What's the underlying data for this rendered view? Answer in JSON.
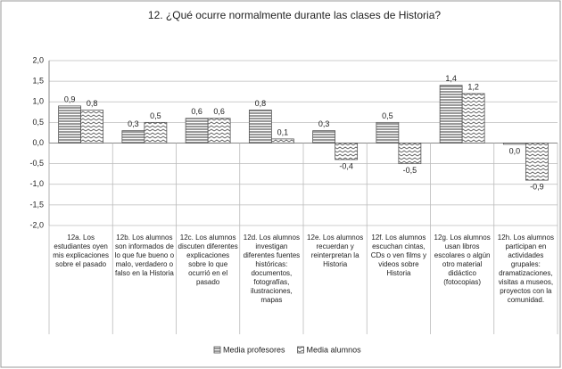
{
  "chart_data": {
    "type": "bar",
    "title": "12. ¿Qué ocurre normalmente durante las clases de Historia?",
    "categories": [
      "12a. Los estudiantes oyen mis explicaciones sobre el pasado",
      "12b. Los alumnos son informados de lo que fue bueno o malo, verdadero o falso en la Historia",
      "12c. Los alumnos discuten diferentes explicaciones sobre lo que ocurrió en el pasado",
      "12d. Los alumnos investigan diferentes fuentes históricas: documentos, fotografías, ilustraciones, mapas",
      "12e. Los alumnos recuerdan y reinterpretan la Historia",
      "12f. Los alumnos escuchan cintas, CDs o ven films y videos sobre Historia",
      "12g. Los alumnos usan libros escolares o algún otro material didáctico (fotocopias)",
      "12h. Los alumnos participan en actividades grupales: dramatizaciones, visitas a museos, proyectos con la comunidad."
    ],
    "series": [
      {
        "name": "Media profesores",
        "color": "#555555",
        "values": [
          0.9,
          0.3,
          0.6,
          0.8,
          0.3,
          0.5,
          1.4,
          -0.03
        ],
        "value_labels": [
          "0,9",
          "0,3",
          "0,6",
          "0,8",
          "0,3",
          "0,5",
          "1,4",
          "0,0"
        ]
      },
      {
        "name": "Media alumnos",
        "color": "#555555",
        "values": [
          0.8,
          0.5,
          0.6,
          0.1,
          -0.4,
          -0.5,
          1.2,
          -0.9
        ],
        "value_labels": [
          "0,8",
          "0,5",
          "0,6",
          "0,1",
          "-0,4",
          "-0,5",
          "1,2",
          "-0,9"
        ]
      }
    ],
    "ylim": [
      -2,
      2
    ],
    "yticks": [
      {
        "value": -2,
        "label": "-2,0"
      },
      {
        "value": -1.5,
        "label": "-1,5"
      },
      {
        "value": -1,
        "label": "-1,0"
      },
      {
        "value": -0.5,
        "label": "-0,5"
      },
      {
        "value": 0,
        "label": "0,0"
      },
      {
        "value": 0.5,
        "label": "0,5"
      },
      {
        "value": 1,
        "label": "1,0"
      },
      {
        "value": 1.5,
        "label": "1,5"
      },
      {
        "value": 2,
        "label": "2,0"
      }
    ],
    "grid": true,
    "legend": "bottom"
  }
}
